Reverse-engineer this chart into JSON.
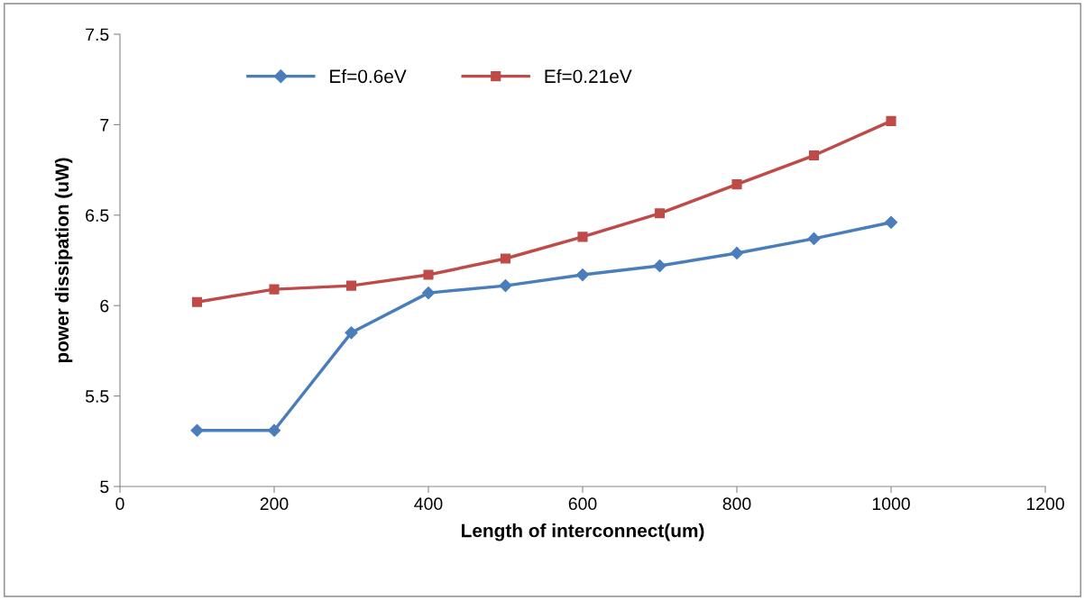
{
  "chart_data": {
    "type": "line",
    "xlabel": "Length of interconnect(um)",
    "ylabel": "power dissipation (uW)",
    "x": [
      100,
      200,
      300,
      400,
      500,
      600,
      700,
      800,
      900,
      1000
    ],
    "series": [
      {
        "name": "Ef=0.6eV",
        "color": "#4a7ebb",
        "marker": "diamond",
        "values": [
          5.31,
          5.31,
          5.85,
          6.07,
          6.11,
          6.17,
          6.22,
          6.29,
          6.37,
          6.46
        ]
      },
      {
        "name": "Ef=0.21eV",
        "color": "#be4b48",
        "marker": "square",
        "values": [
          6.02,
          6.09,
          6.11,
          6.17,
          6.26,
          6.38,
          6.51,
          6.67,
          6.83,
          7.02
        ]
      }
    ],
    "xlim": [
      0,
      1200
    ],
    "xticks": [
      0,
      200,
      400,
      600,
      800,
      1000,
      1200
    ],
    "ylim": [
      5,
      7.5
    ],
    "yticks": [
      5,
      5.5,
      6,
      6.5,
      7,
      7.5
    ],
    "grid": false,
    "legend": "top left",
    "line_style": "solid"
  }
}
